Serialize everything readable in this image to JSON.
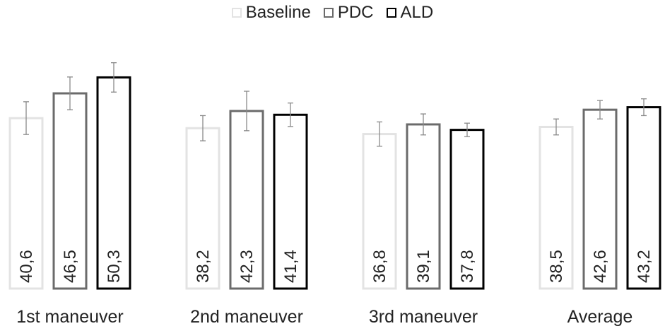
{
  "chart_data": {
    "type": "bar",
    "categories": [
      "1st maneuver",
      "2nd maneuver",
      "3rd maneuver",
      "Average"
    ],
    "series": [
      {
        "name": "Baseline",
        "values": [
          40.6,
          38.2,
          36.8,
          38.5
        ],
        "labels": [
          "40,6",
          "38,2",
          "36,8",
          "38,5"
        ],
        "error": [
          3.9,
          3.0,
          2.9,
          1.9
        ],
        "color": "#e3e3e3"
      },
      {
        "name": "PDC",
        "values": [
          46.5,
          42.3,
          39.1,
          42.6
        ],
        "labels": [
          "46,5",
          "42,3",
          "39,1",
          "42,6"
        ],
        "error": [
          3.9,
          4.7,
          2.5,
          2.2
        ],
        "color": "#6b6b6b"
      },
      {
        "name": "ALD",
        "values": [
          50.3,
          41.4,
          37.8,
          43.2
        ],
        "labels": [
          "50,3",
          "41,4",
          "37,8",
          "43,2"
        ],
        "error": [
          3.5,
          2.8,
          1.6,
          2.0
        ],
        "color": "#000000"
      }
    ],
    "ylim": [
      0,
      62
    ],
    "grid": false,
    "legend": "top-center",
    "xlabel": "",
    "ylabel": ""
  }
}
